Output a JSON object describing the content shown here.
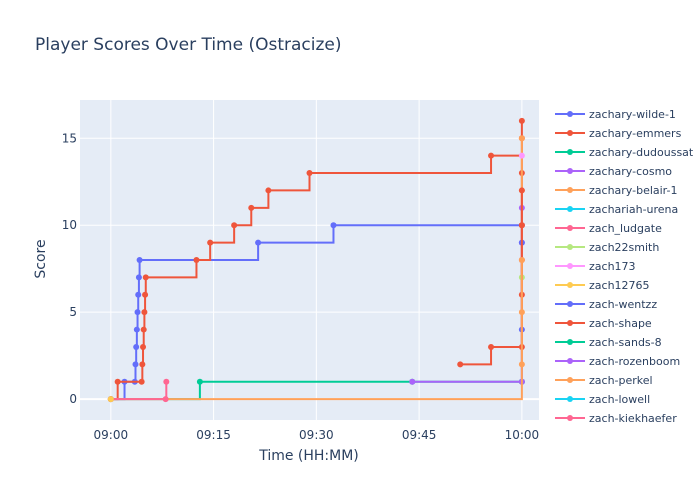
{
  "chart_data": {
    "type": "line",
    "line_shape": "step",
    "title": "Player Scores Over Time (Ostracize)",
    "xlabel": "Time (HH:MM)",
    "ylabel": "Score",
    "x_ticks": [
      "09:00",
      "09:15",
      "09:30",
      "09:45",
      "10:00"
    ],
    "x_tick_minutes": [
      0,
      15,
      30,
      45,
      60
    ],
    "xlim": [
      -4.5,
      62.5
    ],
    "y_ticks": [
      0,
      5,
      10,
      15
    ],
    "ylim": [
      -1.2,
      17.2
    ],
    "grid": true,
    "legend_position": "right",
    "colors": {
      "plot_bg": "#E5ECF6",
      "grid": "#ffffff",
      "text": "#2a3f5f"
    },
    "series": [
      {
        "name": "zachary-wilde-1",
        "color": "#636EFA",
        "x": [
          0,
          2,
          3.5,
          3.6,
          3.7,
          3.8,
          3.9,
          4.0,
          4.1,
          4.2,
          21.5,
          32.5,
          60,
          60,
          60
        ],
        "y": [
          0,
          1,
          1,
          2,
          3,
          4,
          5,
          6,
          7,
          8,
          9,
          10,
          10,
          4,
          1
        ]
      },
      {
        "name": "zachary-emmers",
        "color": "#EF553B",
        "x": [
          0,
          1,
          4.5,
          4.6,
          4.7,
          4.8,
          4.9,
          5.0,
          5.1,
          12.5,
          14.5,
          18,
          20.5,
          23,
          29,
          55.5,
          60,
          60,
          60,
          60,
          60,
          60
        ],
        "y": [
          0,
          1,
          1,
          2,
          3,
          4,
          5,
          6,
          7,
          8,
          9,
          10,
          11,
          12,
          13,
          14,
          15,
          16,
          13,
          10,
          8,
          6
        ]
      },
      {
        "name": "zachary-dudoussat",
        "color": "#00CC96",
        "x": [
          0,
          13,
          44,
          60
        ],
        "y": [
          0,
          1,
          1,
          1
        ]
      },
      {
        "name": "zachary-cosmo",
        "color": "#AB63FA",
        "x": [
          44,
          60,
          60,
          60
        ],
        "y": [
          1,
          1,
          9,
          11
        ]
      },
      {
        "name": "zachary-belair-1",
        "color": "#FFA15A",
        "x": [
          0,
          60,
          60
        ],
        "y": [
          0,
          15,
          12
        ]
      },
      {
        "name": "zachariah-urena",
        "color": "#19D3F3",
        "x": [],
        "y": []
      },
      {
        "name": "zach_ludgate",
        "color": "#FF6692",
        "x": [
          0,
          8,
          8.1
        ],
        "y": [
          0,
          0,
          1
        ]
      },
      {
        "name": "zach22smith",
        "color": "#B6E880",
        "x": [
          60
        ],
        "y": [
          7
        ]
      },
      {
        "name": "zach173",
        "color": "#FF97FF",
        "x": [
          60
        ],
        "y": [
          14
        ]
      },
      {
        "name": "zach12765",
        "color": "#FECB52",
        "x": [
          0
        ],
        "y": [
          0
        ]
      },
      {
        "name": "zach-wentzz",
        "color": "#636EFA",
        "x": [
          60
        ],
        "y": [
          9
        ]
      },
      {
        "name": "zach-shape",
        "color": "#EF553B",
        "x": [
          51,
          55.5,
          60,
          60,
          60
        ],
        "y": [
          2,
          3,
          3,
          10,
          12
        ]
      },
      {
        "name": "zach-sands-8",
        "color": "#00CC96",
        "x": [],
        "y": []
      },
      {
        "name": "zach-rozenboom",
        "color": "#AB63FA",
        "x": [],
        "y": []
      },
      {
        "name": "zach-perkel",
        "color": "#FFA15A",
        "x": [
          60,
          60,
          60
        ],
        "y": [
          2,
          5,
          8
        ]
      },
      {
        "name": "zach-lowell",
        "color": "#19D3F3",
        "x": [],
        "y": []
      },
      {
        "name": "zach-kiekhaefer",
        "color": "#FF6692",
        "x": [],
        "y": []
      }
    ]
  }
}
